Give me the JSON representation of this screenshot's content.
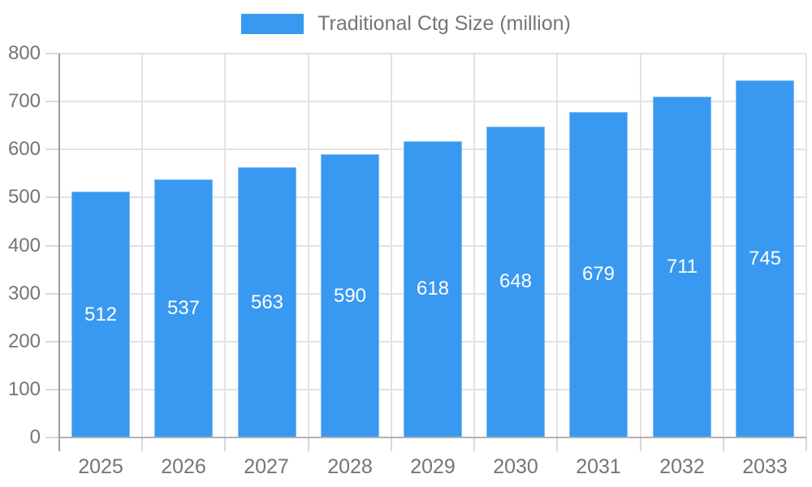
{
  "chart_data": {
    "type": "bar",
    "title": "",
    "legend": "Traditional Ctg Size (million)",
    "legend_position": "top",
    "categories": [
      "2025",
      "2026",
      "2027",
      "2028",
      "2029",
      "2030",
      "2031",
      "2032",
      "2033"
    ],
    "series": [
      {
        "name": "Traditional Ctg Size (million)",
        "values": [
          512,
          537,
          563,
          590,
          618,
          648,
          679,
          711,
          745
        ]
      }
    ],
    "value_labels_shown": true,
    "xlabel": "",
    "ylabel": "",
    "ylim": [
      0,
      800
    ],
    "yticks": [
      0,
      100,
      200,
      300,
      400,
      500,
      600,
      700,
      800
    ],
    "ytick_labels": [
      "0",
      "100",
      "200",
      "300",
      "400",
      "500",
      "600",
      "700",
      "800"
    ],
    "grid": true,
    "colors": {
      "bar": "#3999f1",
      "value_label": "#ffffff",
      "axis_text": "#757575",
      "gridline": "#e2e2e2",
      "tick": "#d9d9d9",
      "y_axis_line": "#9e9e9e",
      "x_axis_line": "#b3b3b3",
      "background": "#ffffff"
    }
  }
}
